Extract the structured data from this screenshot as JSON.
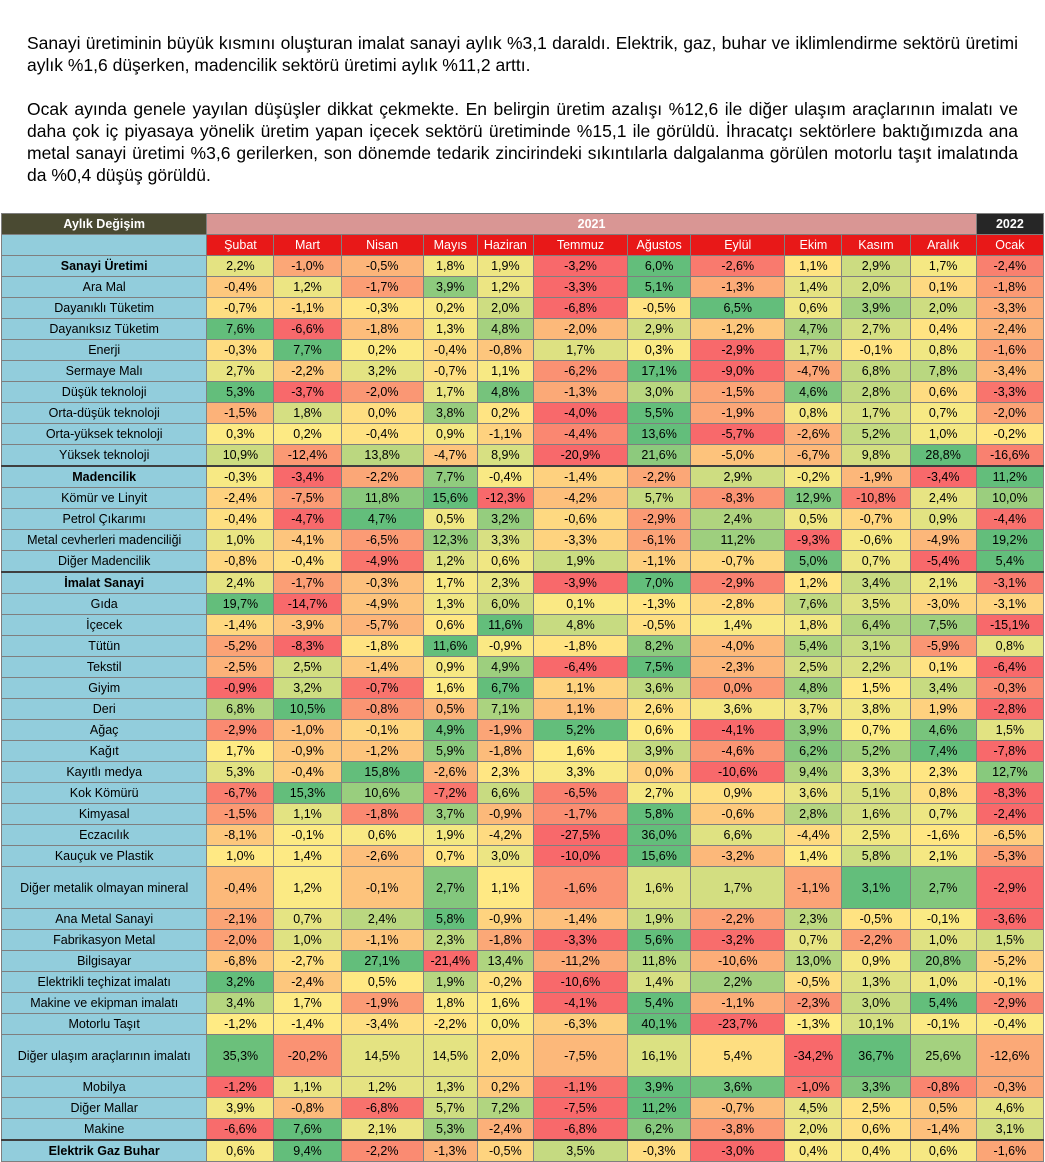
{
  "paragraphs": [
    "Sanayi üretiminin büyük kısmını oluşturan imalat sanayi aylık %3,1 daraldı. Elektrik, gaz, buhar ve iklimlendirme sektörü üretimi aylık %1,6 düşerken, madencilik sektörü üretimi aylık %11,2 arttı.",
    "Ocak ayında genele yayılan düşüşler dikkat çekmekte. En belirgin üretim azalışı %12,6 ile diğer ulaşım araçlarının imalatı ve daha çok iç piyasaya yönelik üretim yapan içecek sektörü üretiminde %15,1 ile görüldü. İhracatçı sektörlere baktığımızda ana metal sanayi üretimi %3,6 gerilerken, son dönemde tedarik zincirindeki sıkıntılarla dalgalanma görülen motorlu taşıt imalatında da %0,4 düşüş görüldü."
  ],
  "table": {
    "corner_label": "Aylık Değişim",
    "year_2021": "2021",
    "year_2022": "2022",
    "months": [
      "Şubat",
      "Mart",
      "Nisan",
      "Mayıs",
      "Haziran",
      "Temmuz",
      "Ağustos",
      "Eylül",
      "Ekim",
      "Kasım",
      "Aralık",
      "Ocak"
    ],
    "rows": [
      {
        "label": "Sanayi Üretimi",
        "bold": true,
        "values": [
          "2,2%",
          "-1,0%",
          "-0,5%",
          "1,8%",
          "1,9%",
          "-3,2%",
          "6,0%",
          "-2,6%",
          "1,1%",
          "2,9%",
          "1,7%",
          "-2,4%"
        ]
      },
      {
        "label": "Ara Mal",
        "values": [
          "-0,4%",
          "1,2%",
          "-1,7%",
          "3,9%",
          "1,2%",
          "-3,3%",
          "5,1%",
          "-1,3%",
          "1,4%",
          "2,0%",
          "0,1%",
          "-1,8%"
        ]
      },
      {
        "label": "Dayanıklı Tüketim",
        "values": [
          "-0,7%",
          "-1,1%",
          "-0,3%",
          "0,2%",
          "2,0%",
          "-6,8%",
          "-0,5%",
          "6,5%",
          "0,6%",
          "3,9%",
          "2,0%",
          "-3,3%"
        ]
      },
      {
        "label": "Dayanıksız Tüketim",
        "values": [
          "7,6%",
          "-6,6%",
          "-1,8%",
          "1,3%",
          "4,8%",
          "-2,0%",
          "2,9%",
          "-1,2%",
          "4,7%",
          "2,7%",
          "0,4%",
          "-2,4%"
        ]
      },
      {
        "label": "Enerji",
        "values": [
          "-0,3%",
          "7,7%",
          "0,2%",
          "-0,4%",
          "-0,8%",
          "1,7%",
          "0,3%",
          "-2,9%",
          "1,7%",
          "-0,1%",
          "0,8%",
          "-1,6%"
        ]
      },
      {
        "label": "Sermaye Malı",
        "values": [
          "2,7%",
          "-2,2%",
          "3,2%",
          "-0,7%",
          "1,1%",
          "-6,2%",
          "17,1%",
          "-9,0%",
          "-4,7%",
          "6,8%",
          "7,8%",
          "-3,4%"
        ]
      },
      {
        "label": "Düşük teknoloji",
        "values": [
          "5,3%",
          "-3,7%",
          "-2,0%",
          "1,7%",
          "4,8%",
          "-1,3%",
          "3,0%",
          "-1,5%",
          "4,6%",
          "2,8%",
          "0,6%",
          "-3,3%"
        ]
      },
      {
        "label": "Orta-düşük teknoloji",
        "values": [
          "-1,5%",
          "1,8%",
          "0,0%",
          "3,8%",
          "0,2%",
          "-4,0%",
          "5,5%",
          "-1,9%",
          "0,8%",
          "1,7%",
          "0,7%",
          "-2,0%"
        ]
      },
      {
        "label": "Orta-yüksek teknoloji",
        "values": [
          "0,3%",
          "0,2%",
          "-0,4%",
          "0,9%",
          "-1,1%",
          "-4,4%",
          "13,6%",
          "-5,7%",
          "-2,6%",
          "5,2%",
          "1,0%",
          "-0,2%"
        ]
      },
      {
        "label": "Yüksek teknoloji",
        "values": [
          "10,9%",
          "-12,4%",
          "13,8%",
          "-4,7%",
          "8,9%",
          "-20,9%",
          "21,6%",
          "-5,0%",
          "-6,7%",
          "9,8%",
          "28,8%",
          "-16,6%"
        ]
      },
      {
        "label": "Madencilik",
        "bold": true,
        "major": true,
        "values": [
          "-0,3%",
          "-3,4%",
          "-2,2%",
          "7,7%",
          "-0,4%",
          "-1,4%",
          "-2,2%",
          "2,9%",
          "-0,2%",
          "-1,9%",
          "-3,4%",
          "11,2%"
        ]
      },
      {
        "label": "Kömür ve Linyit",
        "values": [
          "-2,4%",
          "-7,5%",
          "11,8%",
          "15,6%",
          "-12,3%",
          "-4,2%",
          "5,7%",
          "-8,3%",
          "12,9%",
          "-10,8%",
          "2,4%",
          "10,0%"
        ]
      },
      {
        "label": "Petrol Çıkarımı",
        "values": [
          "-0,4%",
          "-4,7%",
          "4,7%",
          "0,5%",
          "3,2%",
          "-0,6%",
          "-2,9%",
          "2,4%",
          "0,5%",
          "-0,7%",
          "0,9%",
          "-4,4%"
        ]
      },
      {
        "label": "Metal cevherleri madenciliği",
        "values": [
          "1,0%",
          "-4,1%",
          "-6,5%",
          "12,3%",
          "3,3%",
          "-3,3%",
          "-6,1%",
          "11,2%",
          "-9,3%",
          "-0,6%",
          "-4,9%",
          "19,2%"
        ]
      },
      {
        "label": "Diğer Madencilik",
        "values": [
          "-0,8%",
          "-0,4%",
          "-4,9%",
          "1,2%",
          "0,6%",
          "1,9%",
          "-1,1%",
          "-0,7%",
          "5,0%",
          "0,7%",
          "-5,4%",
          "5,4%"
        ]
      },
      {
        "label": "İmalat Sanayi",
        "bold": true,
        "major": true,
        "values": [
          "2,4%",
          "-1,7%",
          "-0,3%",
          "1,7%",
          "2,3%",
          "-3,9%",
          "7,0%",
          "-2,9%",
          "1,2%",
          "3,4%",
          "2,1%",
          "-3,1%"
        ]
      },
      {
        "label": "Gıda",
        "values": [
          "19,7%",
          "-14,7%",
          "-4,9%",
          "1,3%",
          "6,0%",
          "0,1%",
          "-1,3%",
          "-2,8%",
          "7,6%",
          "3,5%",
          "-3,0%",
          "-3,1%"
        ]
      },
      {
        "label": "İçecek",
        "values": [
          "-1,4%",
          "-3,9%",
          "-5,7%",
          "0,6%",
          "11,6%",
          "4,8%",
          "-0,5%",
          "1,4%",
          "1,8%",
          "6,4%",
          "7,5%",
          "-15,1%"
        ]
      },
      {
        "label": "Tütün",
        "values": [
          "-5,2%",
          "-8,3%",
          "-1,8%",
          "11,6%",
          "-0,9%",
          "-1,8%",
          "8,2%",
          "-4,0%",
          "5,4%",
          "3,1%",
          "-5,9%",
          "0,8%"
        ]
      },
      {
        "label": "Tekstil",
        "values": [
          "-2,5%",
          "2,5%",
          "-1,4%",
          "0,9%",
          "4,9%",
          "-6,4%",
          "7,5%",
          "-2,3%",
          "2,5%",
          "2,2%",
          "0,1%",
          "-6,4%"
        ]
      },
      {
        "label": "Giyim",
        "values": [
          "-0,9%",
          "3,2%",
          "-0,7%",
          "1,6%",
          "6,7%",
          "1,1%",
          "3,6%",
          "0,0%",
          "4,8%",
          "1,5%",
          "3,4%",
          "-0,3%"
        ]
      },
      {
        "label": "Deri",
        "values": [
          "6,8%",
          "10,5%",
          "-0,8%",
          "0,5%",
          "7,1%",
          "1,1%",
          "2,6%",
          "3,6%",
          "3,7%",
          "3,8%",
          "1,9%",
          "-2,8%"
        ]
      },
      {
        "label": "Ağaç",
        "values": [
          "-2,9%",
          "-1,0%",
          "-0,1%",
          "4,9%",
          "-1,9%",
          "5,2%",
          "0,6%",
          "-4,1%",
          "3,9%",
          "0,7%",
          "4,6%",
          "1,5%"
        ]
      },
      {
        "label": "Kağıt",
        "values": [
          "1,7%",
          "-0,9%",
          "-1,2%",
          "5,9%",
          "-1,8%",
          "1,6%",
          "3,9%",
          "-4,6%",
          "6,2%",
          "5,2%",
          "7,4%",
          "-7,8%"
        ]
      },
      {
        "label": "Kayıtlı medya",
        "values": [
          "5,3%",
          "-0,4%",
          "15,8%",
          "-2,6%",
          "2,3%",
          "3,3%",
          "0,0%",
          "-10,6%",
          "9,4%",
          "3,3%",
          "2,3%",
          "12,7%"
        ]
      },
      {
        "label": "Kok Kömürü",
        "values": [
          "-6,7%",
          "15,3%",
          "10,6%",
          "-7,2%",
          "6,6%",
          "-6,5%",
          "2,7%",
          "0,9%",
          "3,6%",
          "5,1%",
          "0,8%",
          "-8,3%"
        ]
      },
      {
        "label": "Kimyasal",
        "values": [
          "-1,5%",
          "1,1%",
          "-1,8%",
          "3,7%",
          "-0,9%",
          "-1,7%",
          "5,8%",
          "-0,6%",
          "2,8%",
          "1,6%",
          "0,7%",
          "-2,4%"
        ]
      },
      {
        "label": "Eczacılık",
        "values": [
          "-8,1%",
          "-0,1%",
          "0,6%",
          "1,9%",
          "-4,2%",
          "-27,5%",
          "36,0%",
          "6,6%",
          "-4,4%",
          "2,5%",
          "-1,6%",
          "-6,5%"
        ]
      },
      {
        "label": "Kauçuk ve Plastik",
        "values": [
          "1,0%",
          "1,4%",
          "-2,6%",
          "0,7%",
          "3,0%",
          "-10,0%",
          "15,6%",
          "-3,2%",
          "1,4%",
          "5,8%",
          "2,1%",
          "-5,3%"
        ]
      },
      {
        "label": "Diğer metalik olmayan mineral",
        "tall": true,
        "values": [
          "-0,4%",
          "1,2%",
          "-0,1%",
          "2,7%",
          "1,1%",
          "-1,6%",
          "1,6%",
          "1,7%",
          "-1,1%",
          "3,1%",
          "2,7%",
          "-2,9%"
        ]
      },
      {
        "label": "Ana Metal Sanayi",
        "values": [
          "-2,1%",
          "0,7%",
          "2,4%",
          "5,8%",
          "-0,9%",
          "-1,4%",
          "1,9%",
          "-2,2%",
          "2,3%",
          "-0,5%",
          "-0,1%",
          "-3,6%"
        ]
      },
      {
        "label": "Fabrikasyon Metal",
        "values": [
          "-2,0%",
          "1,0%",
          "-1,1%",
          "2,3%",
          "-1,8%",
          "-3,3%",
          "5,6%",
          "-3,2%",
          "0,7%",
          "-2,2%",
          "1,0%",
          "1,5%"
        ]
      },
      {
        "label": "Bilgisayar",
        "values": [
          "-6,8%",
          "-2,7%",
          "27,1%",
          "-21,4%",
          "13,4%",
          "-11,2%",
          "11,8%",
          "-10,6%",
          "13,0%",
          "0,9%",
          "20,8%",
          "-5,2%"
        ]
      },
      {
        "label": "Elektrikli teçhizat imalatı",
        "values": [
          "3,2%",
          "-2,4%",
          "0,5%",
          "1,9%",
          "-0,2%",
          "-10,6%",
          "1,4%",
          "2,2%",
          "-0,5%",
          "1,3%",
          "1,0%",
          "-0,1%"
        ]
      },
      {
        "label": "Makine ve ekipman imalatı",
        "values": [
          "3,4%",
          "1,7%",
          "-1,9%",
          "1,8%",
          "1,6%",
          "-4,1%",
          "5,4%",
          "-1,1%",
          "-2,3%",
          "3,0%",
          "5,4%",
          "-2,9%"
        ]
      },
      {
        "label": "Motorlu Taşıt",
        "values": [
          "-1,2%",
          "-1,4%",
          "-3,4%",
          "-2,2%",
          "0,0%",
          "-6,3%",
          "40,1%",
          "-23,7%",
          "-1,3%",
          "10,1%",
          "-0,1%",
          "-0,4%"
        ]
      },
      {
        "label": "Diğer ulaşım araçlarının imalatı",
        "tall": true,
        "values": [
          "35,3%",
          "-20,2%",
          "14,5%",
          "14,5%",
          "2,0%",
          "-7,5%",
          "16,1%",
          "5,4%",
          "-34,2%",
          "36,7%",
          "25,6%",
          "-12,6%"
        ]
      },
      {
        "label": "Mobilya",
        "values": [
          "-1,2%",
          "1,1%",
          "1,2%",
          "1,3%",
          "0,2%",
          "-1,1%",
          "3,9%",
          "3,6%",
          "-1,0%",
          "3,3%",
          "-0,8%",
          "-0,3%"
        ]
      },
      {
        "label": "Diğer Mallar",
        "values": [
          "3,9%",
          "-0,8%",
          "-6,8%",
          "5,7%",
          "7,2%",
          "-7,5%",
          "11,2%",
          "-0,7%",
          "4,5%",
          "2,5%",
          "0,5%",
          "4,6%"
        ]
      },
      {
        "label": "Makine",
        "values": [
          "-6,6%",
          "7,6%",
          "2,1%",
          "5,3%",
          "-2,4%",
          "-6,8%",
          "6,2%",
          "-3,8%",
          "2,0%",
          "0,6%",
          "-1,4%",
          "3,1%"
        ]
      },
      {
        "label": "Elektrik Gaz Buhar",
        "bold": true,
        "major": true,
        "values": [
          "0,6%",
          "9,4%",
          "-2,2%",
          "-1,3%",
          "-0,5%",
          "3,5%",
          "-0,3%",
          "-3,0%",
          "0,4%",
          "0,4%",
          "0,6%",
          "-1,6%"
        ]
      }
    ]
  }
}
